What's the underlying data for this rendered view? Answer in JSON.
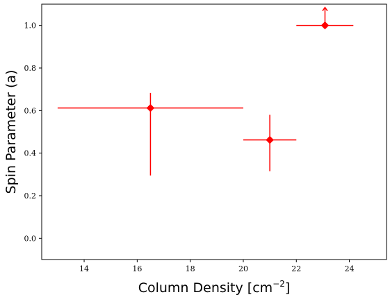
{
  "chart_data": {
    "type": "scatter",
    "xlabel": "Column Density [cm",
    "xlabel_superscript": "−2",
    "xlabel_suffix": "]",
    "ylabel": "Spin Parameter (a)",
    "xlim": [
      12.4,
      25.4
    ],
    "ylim": [
      -0.1,
      1.1
    ],
    "xticks": [
      14,
      16,
      18,
      20,
      22,
      24
    ],
    "yticks": [
      0.0,
      0.2,
      0.4,
      0.6,
      0.8,
      1.0
    ],
    "ytick_labels": [
      "0.0",
      "0.2",
      "0.4",
      "0.6",
      "0.8",
      "1.0"
    ],
    "grid": false,
    "marker": "diamond",
    "color": "#ff0000",
    "points": [
      {
        "x": 16.5,
        "y": 0.612,
        "x_err": [
          13.0,
          20.0
        ],
        "y_err": [
          0.295,
          0.683
        ],
        "lower_limit": false
      },
      {
        "x": 21.0,
        "y": 0.462,
        "x_err": [
          20.0,
          22.0
        ],
        "y_err": [
          0.315,
          0.58
        ],
        "lower_limit": false
      },
      {
        "x": 23.08,
        "y": 1.0,
        "x_err": [
          22.0,
          24.15
        ],
        "y_err": null,
        "lower_limit": true
      }
    ]
  }
}
